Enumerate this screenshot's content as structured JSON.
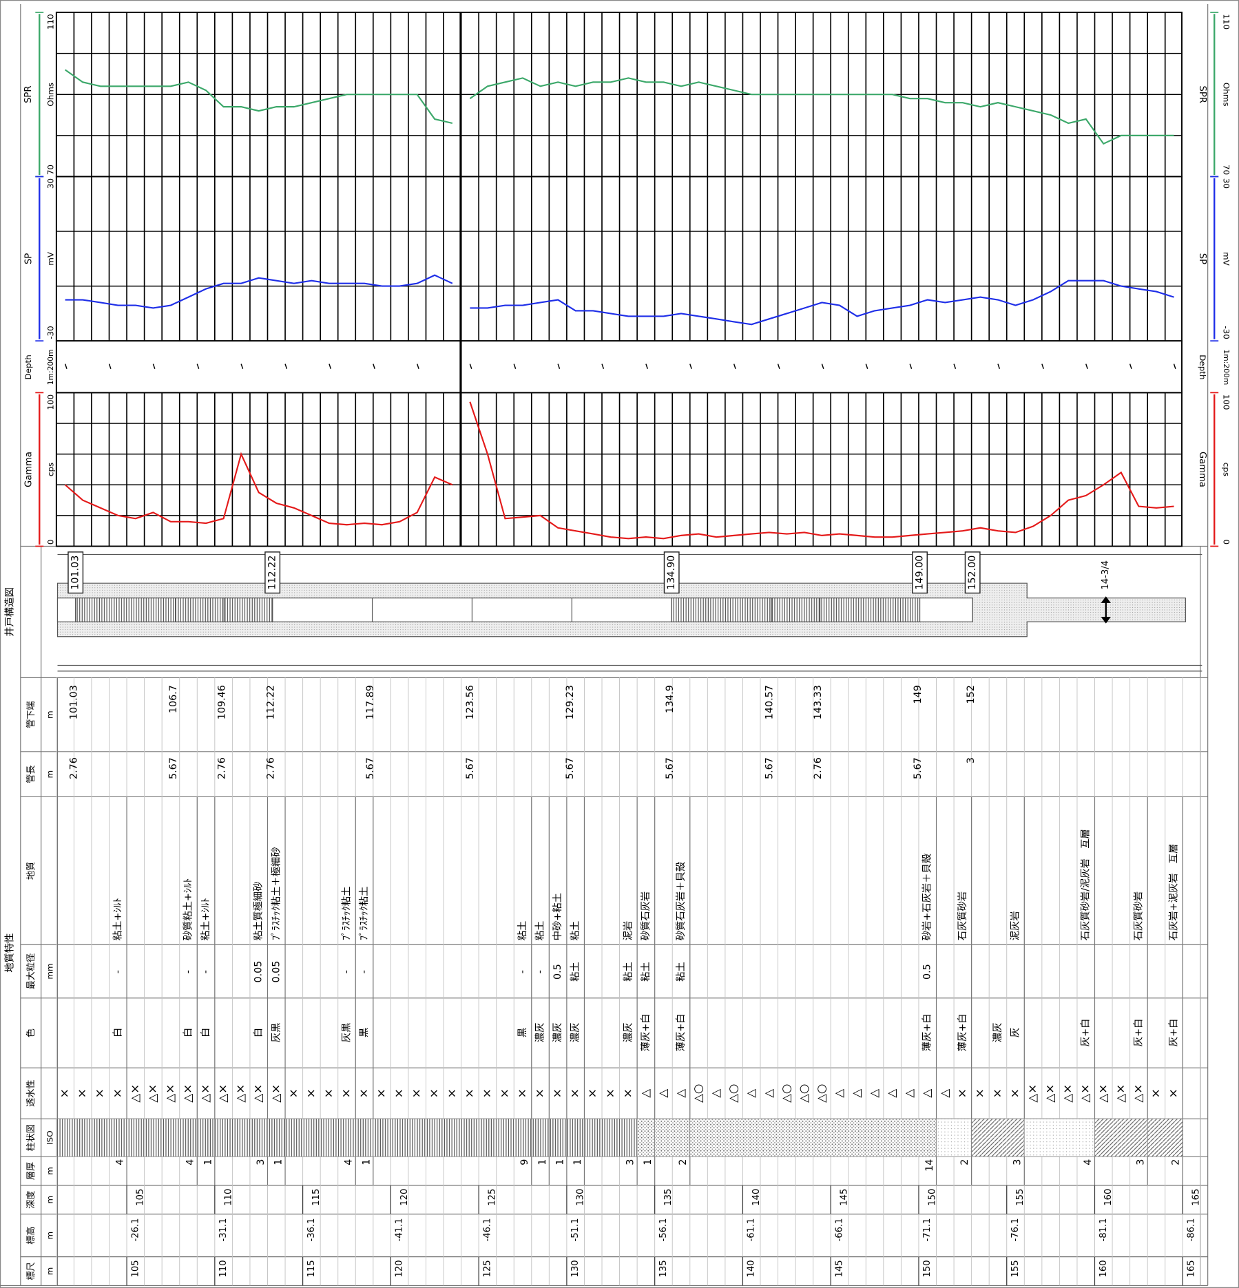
{
  "chart_data": {
    "type": "well_log",
    "x": [
      101,
      102,
      103,
      104,
      105,
      106,
      107,
      108,
      109,
      110,
      111,
      112,
      113,
      114,
      115,
      116,
      117,
      118,
      119,
      120,
      121,
      122,
      123,
      123.5,
      124,
      125,
      126,
      127,
      128,
      129,
      130,
      131,
      132,
      133,
      134,
      135,
      136,
      137,
      138,
      139,
      140,
      141,
      142,
      143,
      144,
      145,
      146,
      147,
      148,
      149,
      150,
      151,
      152,
      153,
      154,
      155,
      156,
      157,
      158,
      159,
      160,
      161,
      162,
      163,
      164
    ],
    "tracks": [
      {
        "name": "SPR",
        "unit": "Ohms",
        "color": "#3ca86a",
        "ylim": [
          70,
          110
        ],
        "yticks": [
          70,
          110
        ],
        "values": [
          96,
          93,
          92,
          92,
          92,
          92,
          92,
          93,
          91,
          87,
          87,
          86,
          87,
          87,
          88,
          89,
          90,
          90,
          90,
          90,
          90,
          84,
          83,
          null,
          89,
          92,
          93,
          94,
          92,
          93,
          92,
          93,
          93,
          94,
          93,
          93,
          92,
          93,
          92,
          91,
          90,
          90,
          90,
          90,
          90,
          90,
          90,
          90,
          90,
          89,
          89,
          88,
          88,
          87,
          88,
          87,
          86,
          85,
          83,
          84,
          78,
          80,
          80,
          80,
          80
        ]
      },
      {
        "name": "SP",
        "unit": "mV",
        "color": "#1f2fe8",
        "ylim": [
          -30,
          30
        ],
        "yticks": [
          -30,
          30
        ],
        "values": [
          -15,
          -15,
          -16,
          -17,
          -17,
          -18,
          -17,
          -14,
          -11,
          -9,
          -9,
          -7,
          -8,
          -9,
          -8,
          -9,
          -9,
          -9,
          -10,
          -10,
          -9,
          -6,
          -9,
          null,
          -18,
          -18,
          -17,
          -17,
          -16,
          -15,
          -19,
          -19,
          -20,
          -21,
          -21,
          -21,
          -20,
          -21,
          -22,
          -23,
          -24,
          -22,
          -20,
          -18,
          -16,
          -17,
          -21,
          -19,
          -18,
          -17,
          -15,
          -16,
          -15,
          -14,
          -15,
          -17,
          -15,
          -12,
          -8,
          -8,
          -8,
          -10,
          -11,
          -12,
          -14
        ]
      },
      {
        "name": "Gamma",
        "unit": "cps",
        "color": "#e41a1a",
        "ylim": [
          0,
          100
        ],
        "yticks": [
          0,
          100
        ],
        "values": [
          40,
          30,
          25,
          20,
          18,
          22,
          16,
          16,
          15,
          18,
          60,
          35,
          28,
          25,
          20,
          15,
          14,
          15,
          14,
          16,
          22,
          45,
          40,
          null,
          94,
          60,
          18,
          19,
          20,
          12,
          10,
          8,
          6,
          5,
          6,
          5,
          7,
          8,
          6,
          7,
          8,
          9,
          8,
          9,
          7,
          8,
          7,
          6,
          6,
          7,
          8,
          9,
          10,
          12,
          10,
          9,
          13,
          20,
          30,
          33,
          40,
          48,
          26,
          25,
          26
        ]
      }
    ],
    "depth_track": {
      "name": "Depth",
      "scale": "1m:200m"
    }
  },
  "columns": [
    {
      "label": "標尺",
      "unit": "m"
    },
    {
      "label": "標高",
      "unit": "m"
    },
    {
      "label": "深度",
      "unit": "m"
    },
    {
      "label": "層厚",
      "unit": "m"
    },
    {
      "label": "柱状図",
      "unit": "ISO"
    },
    {
      "label": "透水性"
    },
    {
      "label": "色"
    },
    {
      "label": "最大粒径",
      "unit": "mm"
    },
    {
      "label": "地質"
    },
    {
      "label": "管長",
      "unit": "m"
    },
    {
      "label": "管下端",
      "unit": "m"
    },
    {
      "label": "井戸構造図"
    }
  ],
  "group": "地質特性",
  "scale": {
    "ticks": [
      105,
      110,
      115,
      120,
      125,
      130,
      135,
      140,
      145,
      150,
      155,
      160,
      165
    ],
    "elevations": [
      -26.1,
      -31.1,
      -36.1,
      -41.1,
      -46.1,
      -51.1,
      -56.1,
      -61.1,
      -66.1,
      -71.1,
      -76.1,
      -81.1,
      -86.1
    ],
    "depths": [
      105,
      110,
      115,
      120,
      125,
      130,
      135,
      140,
      145,
      150,
      155,
      160,
      165
    ]
  },
  "top_depth": 101,
  "layers": [
    {
      "thickness": 4,
      "geology": "粘土+ｼﾙﾄ",
      "color": [
        "白"
      ],
      "grain": "-"
    },
    {
      "thickness": 4,
      "geology": "砂質粘土+ｼﾙﾄ",
      "color": [
        "白"
      ],
      "grain": "-"
    },
    {
      "thickness": 1,
      "geology": "粘土+ｼﾙﾄ",
      "color": [
        "白"
      ],
      "grain": "-"
    },
    {
      "thickness": 3,
      "geology": "粘土質極細砂",
      "color": [
        "白"
      ],
      "grain": "0.05"
    },
    {
      "thickness": 1,
      "geology": "ﾌﾟﾗｽﾁｯｸ粘土＋極細砂",
      "color": [
        "灰黒"
      ],
      "grain": "0.05"
    },
    {
      "thickness": 4,
      "geology": "ﾌﾟﾗｽﾁｯｸ粘土",
      "color": [
        "灰黒"
      ],
      "grain": "-"
    },
    {
      "thickness": 1,
      "geology": "ﾌﾟﾗｽﾁｯｸ粘土",
      "color": [
        "黒"
      ],
      "grain": "-"
    },
    {
      "thickness": 9,
      "geology": "粘土",
      "color": [
        "黒"
      ],
      "grain": "-"
    },
    {
      "thickness": 1,
      "geology": "粘土",
      "color": [
        "濃灰"
      ],
      "grain": "-"
    },
    {
      "thickness": 1,
      "geology": "中砂+粘土",
      "color": [
        "濃灰"
      ],
      "grain": "0.5"
    },
    {
      "thickness": 1,
      "geology": "粘土",
      "color": [
        "濃灰"
      ],
      "grain": "粘土"
    },
    {
      "thickness": 3,
      "geology": "泥岩",
      "color": [
        "濃灰"
      ],
      "grain": "粘土"
    },
    {
      "thickness": 1,
      "geology": "砂質石灰岩",
      "color": [
        "薄灰+白"
      ],
      "grain": "粘土"
    },
    {
      "thickness": 2,
      "geology": "砂質石灰岩＋貝殻",
      "color": [
        "薄灰+白"
      ],
      "grain": "粘土"
    },
    {
      "thickness": 14,
      "geology": "砂岩+石灰岩＋貝殻",
      "color": [
        "薄灰+白"
      ],
      "grain": "0.5"
    },
    {
      "thickness": 2,
      "geology": "石灰質砂岩",
      "color": [
        "薄灰+白"
      ]
    },
    {
      "thickness": 3,
      "geology": "泥灰岩",
      "color": [
        "濃灰",
        "灰"
      ]
    },
    {
      "thickness": 4,
      "geology": "石灰質砂岩/泥灰岩　互層",
      "color": [
        "灰+白"
      ]
    },
    {
      "thickness": 3,
      "geology": "石灰質砂岩",
      "color": [
        "灰+白"
      ]
    },
    {
      "thickness": 2,
      "geology": "石灰岩+泥灰岩　互層",
      "color": [
        "灰+白"
      ]
    }
  ],
  "permeability": [
    "×",
    "×",
    "×",
    "×",
    "△×",
    "△×",
    "△×",
    "△×",
    "△×",
    "△×",
    "△×",
    "△×",
    "△×",
    "×",
    "×",
    "×",
    "×",
    "×",
    "×",
    "×",
    "×",
    "×",
    "×",
    "×",
    "×",
    "×",
    "×",
    "×",
    "×",
    "×",
    "×",
    "×",
    "×",
    "△",
    "△",
    "△",
    "△○",
    "△",
    "△○",
    "△",
    "△",
    "△○",
    "△○",
    "△○",
    "△",
    "△",
    "△",
    "△",
    "△",
    "△",
    "△",
    "×",
    "×",
    "×",
    "×",
    "△×",
    "△×",
    "△×",
    "△×",
    "△×",
    "△×",
    "△×",
    "×",
    "×"
  ],
  "pipes": [
    {
      "length": 2.76,
      "bottom": 101.03
    },
    {
      "length": 5.67,
      "bottom": 106.7
    },
    {
      "length": 2.76,
      "bottom": 109.46
    },
    {
      "length": 2.76,
      "bottom": 112.22
    },
    {
      "length": 5.67,
      "bottom": 117.89
    },
    {
      "length": 5.67,
      "bottom": 123.56
    },
    {
      "length": 5.67,
      "bottom": 129.23
    },
    {
      "length": 5.67,
      "bottom": 134.9
    },
    {
      "length": 5.67,
      "bottom": 140.57
    },
    {
      "length": 2.76,
      "bottom": 143.33
    },
    {
      "length": 5.67,
      "bottom": 149
    },
    {
      "length": 3,
      "bottom": 152
    }
  ],
  "well": {
    "marks": [
      {
        "value": 101.03,
        "label": "101.03"
      },
      {
        "value": 112.22,
        "label": "112.22"
      },
      {
        "value": 134.9,
        "label": "134.90"
      },
      {
        "value": 149,
        "label": "149.00"
      },
      {
        "value": 152,
        "label": "152.00"
      }
    ],
    "casing": "14-3/4"
  }
}
